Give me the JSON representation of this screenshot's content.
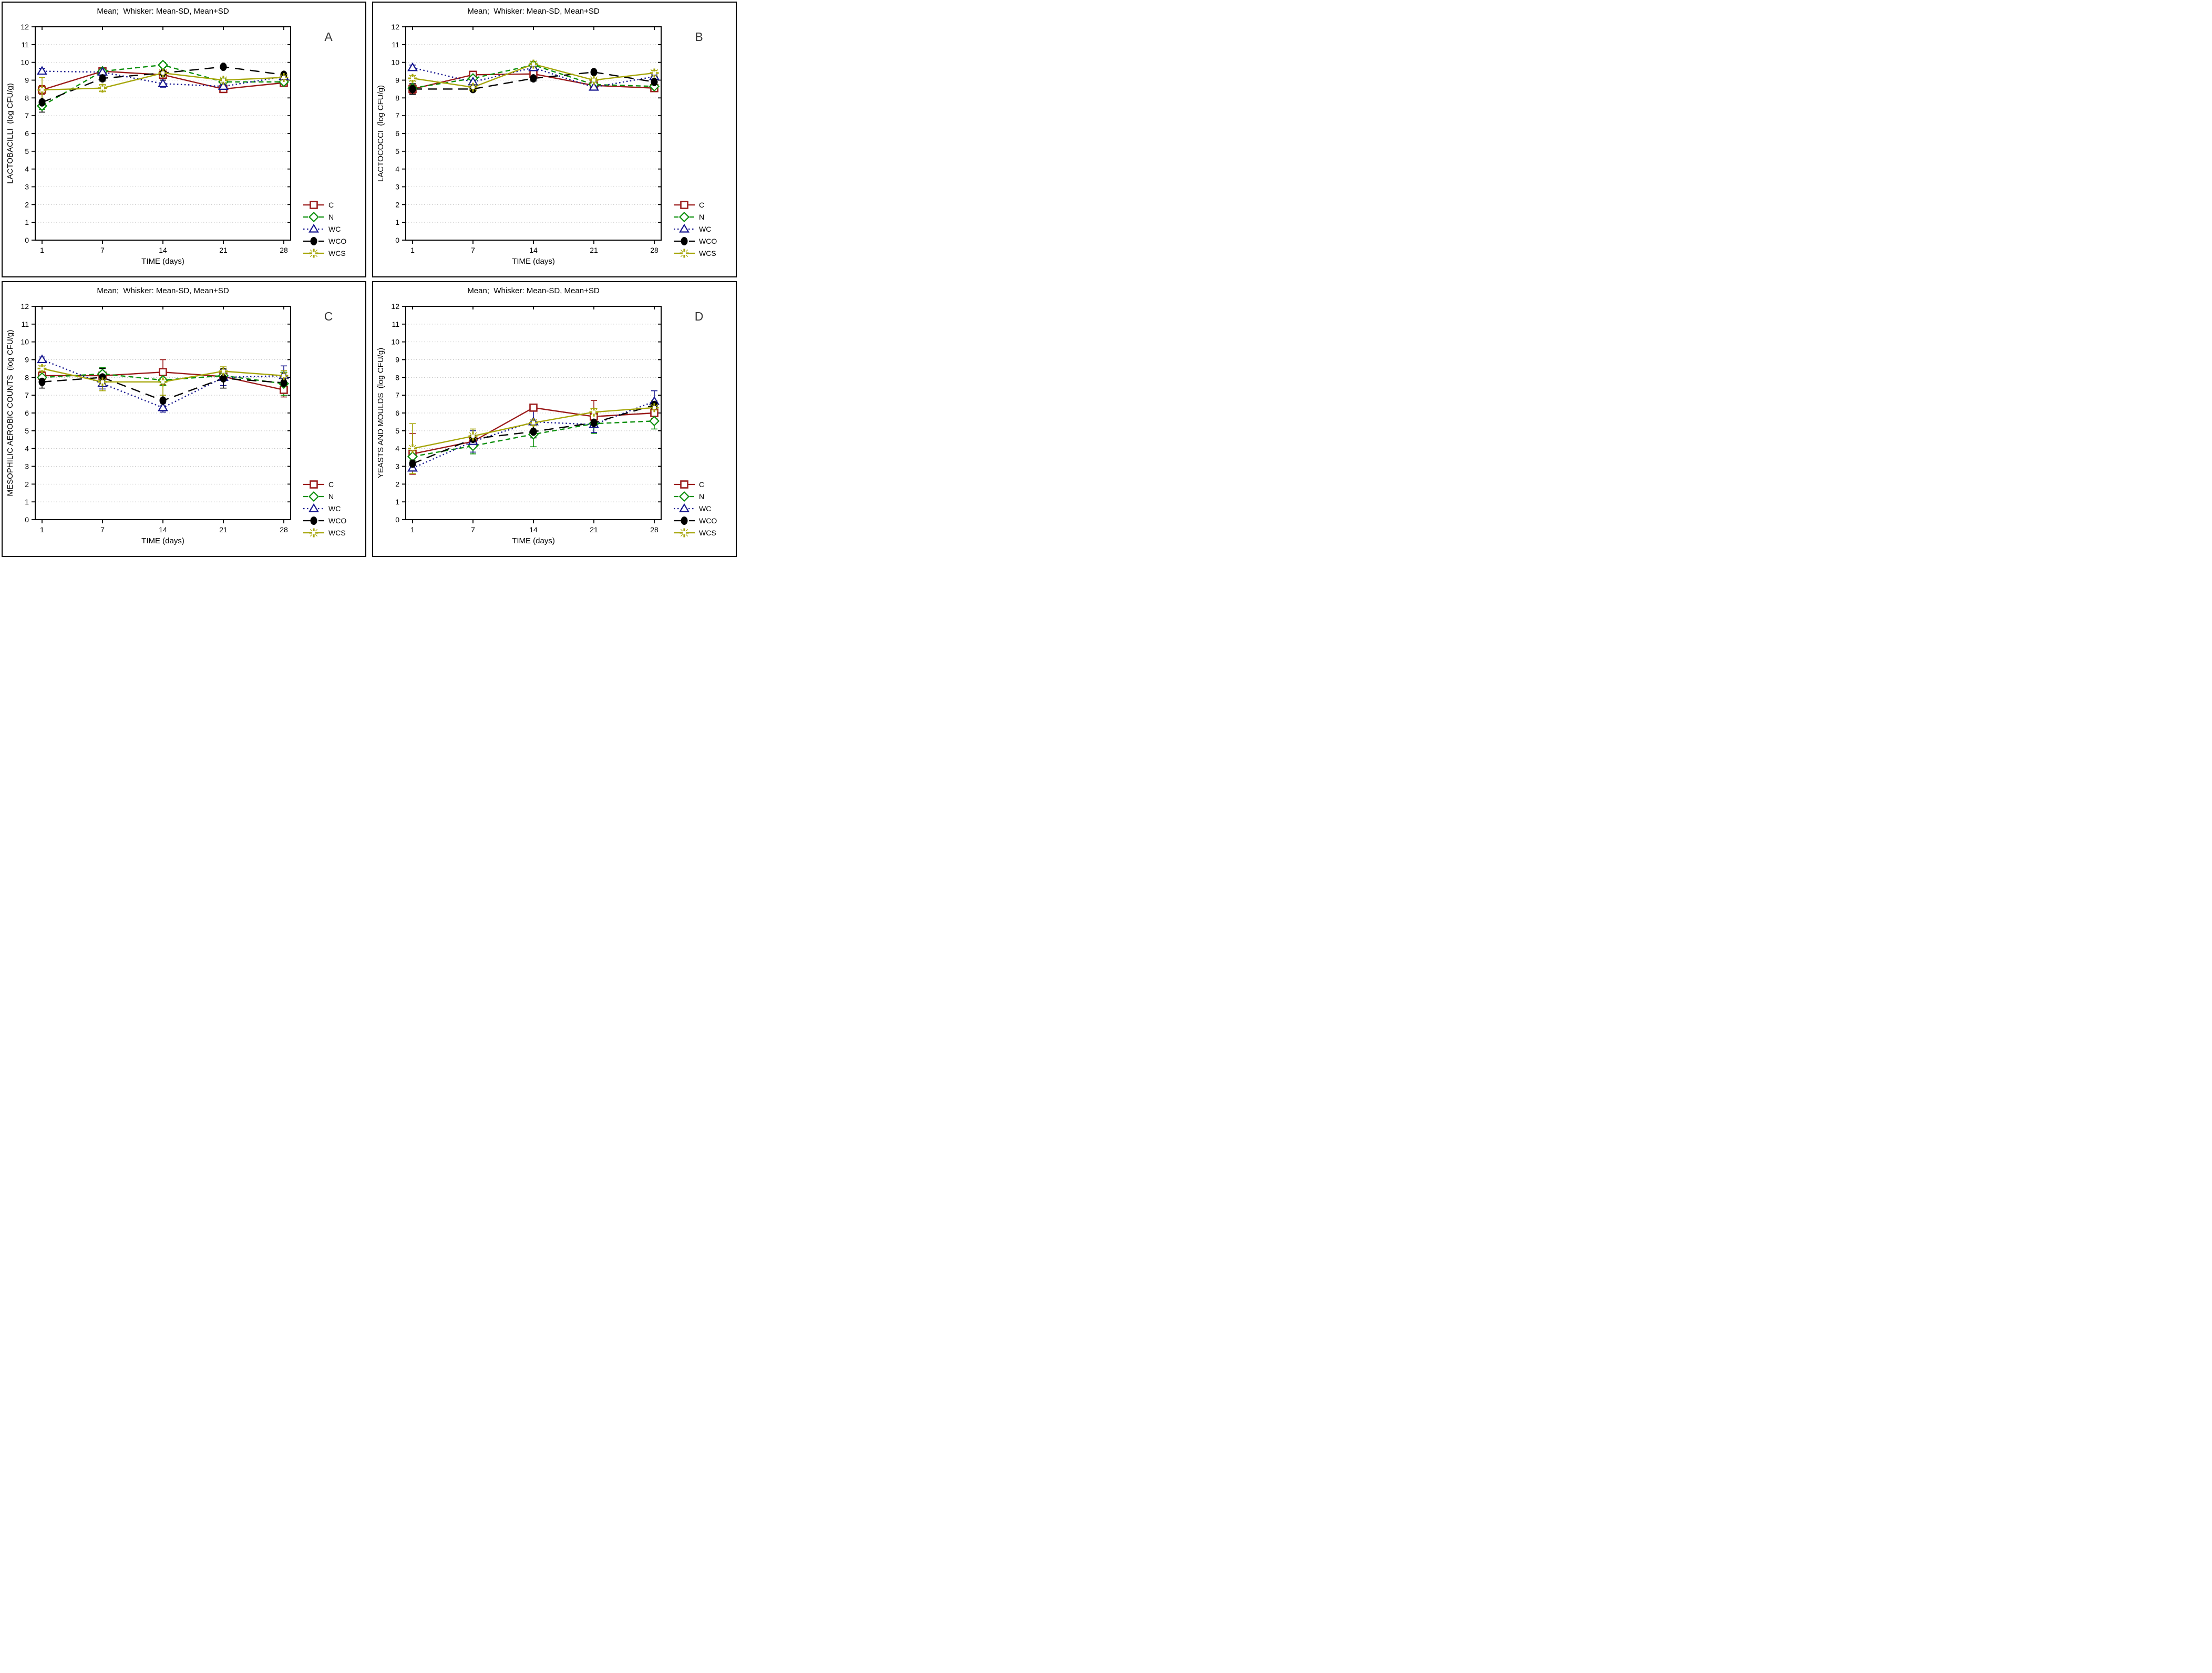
{
  "figure": {
    "background": "#ffffff",
    "grid_color": "#bdbdbd",
    "axis_color": "#000000",
    "panel_letter_color": "#333333",
    "whisker_note": "Whiskers show Mean-SD and Mean+SD"
  },
  "chart_data": [
    {
      "type": "line",
      "panel_letter": "A",
      "title": "Mean;  Whisker: Mean-SD, Mean+SD",
      "xlabel": "TIME (days)",
      "ylabel": "LACTOBACILLI  (log CFU/g)",
      "categories": [
        1,
        7,
        14,
        21,
        28
      ],
      "ylim": [
        0,
        12
      ],
      "ytick_step": 1,
      "grid": "horizontal-dotted",
      "legend_position": "right-bottom",
      "error_bars": "mean±SD",
      "series": [
        {
          "name": "C",
          "color": "#9B1B1B",
          "line_style": "solid",
          "marker": "open-square",
          "values": [
            8.45,
            9.5,
            9.3,
            8.5,
            8.85
          ],
          "sd": [
            0.25,
            0.1,
            0.15,
            0.1,
            0.15
          ]
        },
        {
          "name": "N",
          "color": "#0B8F0B",
          "line_style": "dashed",
          "marker": "open-diamond",
          "values": [
            7.55,
            9.5,
            9.85,
            8.9,
            8.9
          ],
          "sd": [
            0.2,
            0.1,
            0.15,
            0.1,
            0.2
          ]
        },
        {
          "name": "WC",
          "color": "#16168F",
          "line_style": "dotted",
          "marker": "open-triangle",
          "values": [
            9.5,
            9.45,
            8.8,
            8.65,
            9.2
          ],
          "sd": [
            0.15,
            0.1,
            0.2,
            0.1,
            0.1
          ]
        },
        {
          "name": "WCO",
          "color": "#000000",
          "line_style": "long-dash",
          "marker": "filled-circle",
          "values": [
            7.75,
            9.1,
            9.4,
            9.75,
            9.3
          ],
          "sd": [
            0.55,
            0.15,
            0.4,
            0.1,
            0.1
          ]
        },
        {
          "name": "WCS",
          "color": "#A6A60A",
          "line_style": "solid",
          "marker": "star",
          "values": [
            8.45,
            8.55,
            9.4,
            9.0,
            9.15
          ],
          "sd": [
            0.7,
            0.2,
            0.15,
            0.1,
            0.1
          ]
        }
      ]
    },
    {
      "type": "line",
      "panel_letter": "B",
      "title": "Mean;  Whisker: Mean-SD, Mean+SD",
      "xlabel": "TIME (days)",
      "ylabel": "LACTOCOCCI  (log CFU/g)",
      "categories": [
        1,
        7,
        14,
        21,
        28
      ],
      "ylim": [
        0,
        12
      ],
      "ytick_step": 1,
      "grid": "horizontal-dotted",
      "legend_position": "right-bottom",
      "error_bars": "mean±SD",
      "series": [
        {
          "name": "C",
          "color": "#9B1B1B",
          "line_style": "solid",
          "marker": "open-square",
          "values": [
            8.5,
            9.3,
            9.35,
            8.7,
            8.55
          ],
          "sd": [
            0.25,
            0.1,
            0.1,
            0.1,
            0.2
          ]
        },
        {
          "name": "N",
          "color": "#0B8F0B",
          "line_style": "dashed",
          "marker": "open-diamond",
          "values": [
            8.55,
            9.1,
            9.85,
            8.75,
            8.65
          ],
          "sd": [
            0.1,
            0.1,
            0.1,
            0.1,
            0.1
          ]
        },
        {
          "name": "WC",
          "color": "#16168F",
          "line_style": "dotted",
          "marker": "open-triangle",
          "values": [
            9.7,
            8.9,
            9.7,
            8.6,
            9.2
          ],
          "sd": [
            0.15,
            0.1,
            0.15,
            0.15,
            0.1
          ]
        },
        {
          "name": "WCO",
          "color": "#000000",
          "line_style": "long-dash",
          "marker": "filled-circle",
          "values": [
            8.5,
            8.5,
            9.1,
            9.45,
            8.9
          ],
          "sd": [
            0.3,
            0.15,
            0.15,
            0.1,
            0.15
          ]
        },
        {
          "name": "WCS",
          "color": "#A6A60A",
          "line_style": "solid",
          "marker": "star",
          "values": [
            9.1,
            8.6,
            9.9,
            9.0,
            9.4
          ],
          "sd": [
            0.15,
            0.25,
            0.15,
            0.1,
            0.15
          ]
        }
      ]
    },
    {
      "type": "line",
      "panel_letter": "C",
      "title": "Mean;  Whisker: Mean-SD, Mean+SD",
      "xlabel": "TIME (days)",
      "ylabel": "MESOPHILIC AEROBIC COUNTS  (log CFU/g)",
      "categories": [
        1,
        7,
        14,
        21,
        28
      ],
      "ylim": [
        0,
        12
      ],
      "ytick_step": 1,
      "grid": "horizontal-dotted",
      "legend_position": "right-bottom",
      "error_bars": "mean±SD",
      "series": [
        {
          "name": "C",
          "color": "#9B1B1B",
          "line_style": "solid",
          "marker": "open-square",
          "values": [
            8.1,
            8.1,
            8.3,
            8.05,
            7.3
          ],
          "sd": [
            0.15,
            0.2,
            0.7,
            0.15,
            0.4
          ]
        },
        {
          "name": "N",
          "color": "#0B8F0B",
          "line_style": "dashed",
          "marker": "open-diamond",
          "values": [
            8.0,
            8.2,
            7.85,
            8.1,
            7.65
          ],
          "sd": [
            0.15,
            0.35,
            0.3,
            0.15,
            0.65
          ]
        },
        {
          "name": "WC",
          "color": "#16168F",
          "line_style": "dotted",
          "marker": "open-triangle",
          "values": [
            9.0,
            7.65,
            6.3,
            8.0,
            8.1
          ],
          "sd": [
            0.15,
            0.3,
            0.25,
            0.45,
            0.55
          ]
        },
        {
          "name": "WCO",
          "color": "#000000",
          "line_style": "long-dash",
          "marker": "filled-circle",
          "values": [
            7.75,
            8.0,
            6.7,
            7.95,
            7.7
          ],
          "sd": [
            0.35,
            0.5,
            0.3,
            0.55,
            0.25
          ]
        },
        {
          "name": "WCS",
          "color": "#A6A60A",
          "line_style": "solid",
          "marker": "star",
          "values": [
            8.5,
            7.75,
            7.75,
            8.35,
            8.1
          ],
          "sd": [
            0.15,
            0.5,
            0.75,
            0.25,
            0.3
          ]
        }
      ]
    },
    {
      "type": "line",
      "panel_letter": "D",
      "title": "Mean;  Whisker: Mean-SD, Mean+SD",
      "xlabel": "TIME (days)",
      "ylabel": "YEASTS AND MOULDS  (log CFU/g)",
      "categories": [
        1,
        7,
        14,
        21,
        28
      ],
      "ylim": [
        0,
        12
      ],
      "ytick_step": 1,
      "grid": "horizontal-dotted",
      "legend_position": "right-bottom",
      "error_bars": "mean±SD",
      "series": [
        {
          "name": "C",
          "color": "#9B1B1B",
          "line_style": "solid",
          "marker": "open-square",
          "values": [
            3.7,
            4.4,
            6.3,
            5.8,
            6.0
          ],
          "sd": [
            1.15,
            0.2,
            0.15,
            0.9,
            0.3
          ]
        },
        {
          "name": "N",
          "color": "#0B8F0B",
          "line_style": "dashed",
          "marker": "open-diamond",
          "values": [
            3.55,
            4.15,
            4.8,
            5.4,
            5.55
          ],
          "sd": [
            0.2,
            0.45,
            0.7,
            0.55,
            0.45
          ]
        },
        {
          "name": "WC",
          "color": "#16168F",
          "line_style": "dotted",
          "marker": "open-triangle",
          "values": [
            2.9,
            4.4,
            5.5,
            5.35,
            6.65
          ],
          "sd": [
            0.15,
            0.6,
            0.7,
            0.45,
            0.6
          ]
        },
        {
          "name": "WCO",
          "color": "#000000",
          "line_style": "long-dash",
          "marker": "filled-circle",
          "values": [
            3.15,
            4.55,
            4.95,
            5.45,
            6.45
          ],
          "sd": [
            0.35,
            0.2,
            0.35,
            0.2,
            0.2
          ]
        },
        {
          "name": "WCS",
          "color": "#A6A60A",
          "line_style": "solid",
          "marker": "star",
          "values": [
            4.0,
            4.7,
            5.45,
            6.05,
            6.3
          ],
          "sd": [
            1.4,
            0.4,
            0.15,
            0.2,
            0.4
          ]
        }
      ]
    }
  ]
}
